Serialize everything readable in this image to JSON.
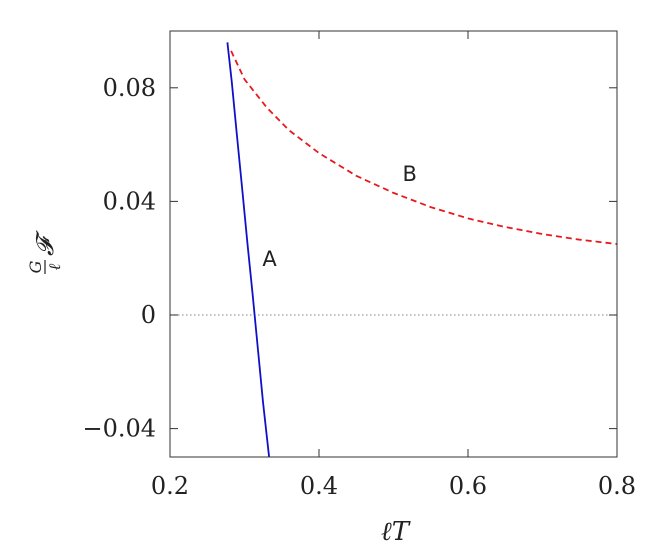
{
  "chart_data": {
    "type": "line",
    "xlabel": "ℓT",
    "ylabel_parts": {
      "num": "G",
      "den": "ℓ",
      "func": "𝓕"
    },
    "xlim": [
      0.2,
      0.8
    ],
    "ylim": [
      -0.05,
      0.1
    ],
    "x_ticks": [
      0.2,
      0.4,
      0.6,
      0.8
    ],
    "x_tick_labels": [
      "0.2",
      "0.4",
      "0.6",
      "0.8"
    ],
    "y_ticks": [
      -0.04,
      0,
      0.04,
      0.08
    ],
    "y_tick_labels": [
      "−0.04",
      "0",
      "0.04",
      "0.08"
    ],
    "grid": false,
    "reference_line": {
      "y": 0,
      "style": "dotted",
      "color": "#999999"
    },
    "series": [
      {
        "color": "#1010c8",
        "style": "solid",
        "x": [
          0.277,
          0.283,
          0.29,
          0.297,
          0.304,
          0.311,
          0.318,
          0.325,
          0.333
        ],
        "y": [
          0.096,
          0.082,
          0.063,
          0.044,
          0.025,
          0.007,
          -0.012,
          -0.031,
          -0.05
        ]
      },
      {
        "color": "#e8191e",
        "style": "dashed",
        "x": [
          0.282,
          0.3,
          0.33,
          0.36,
          0.4,
          0.45,
          0.5,
          0.55,
          0.6,
          0.65,
          0.7,
          0.75,
          0.8
        ],
        "y": [
          0.093,
          0.083,
          0.073,
          0.065,
          0.057,
          0.049,
          0.043,
          0.038,
          0.034,
          0.031,
          0.0285,
          0.0265,
          0.025
        ]
      }
    ],
    "annotations": [
      {
        "text": "A",
        "x": 0.324,
        "y": 0.02
      },
      {
        "text": "B",
        "x": 0.512,
        "y": 0.05
      }
    ]
  }
}
